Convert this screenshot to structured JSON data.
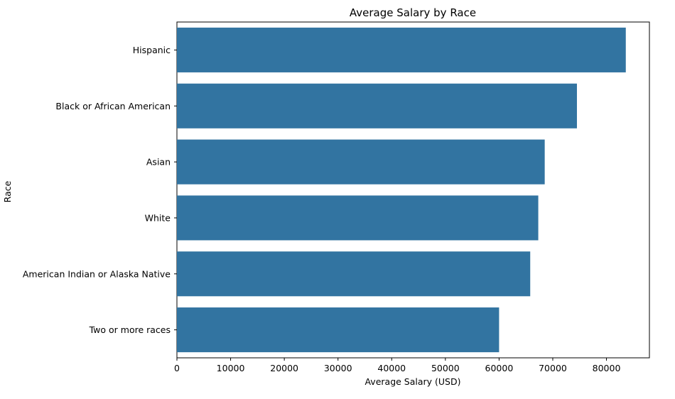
{
  "chart_data": {
    "type": "bar",
    "orientation": "horizontal",
    "title": "Average Salary by Race",
    "xlabel": "Average Salary (USD)",
    "ylabel": "Race",
    "categories": [
      "Hispanic",
      "Black or African American",
      "Asian",
      "White",
      "American Indian or Alaska Native",
      "Two or more races"
    ],
    "values": [
      83600,
      74500,
      68500,
      67300,
      65800,
      60000
    ],
    "xlim": [
      0,
      88000
    ],
    "xticks": [
      0,
      10000,
      20000,
      30000,
      40000,
      50000,
      60000,
      70000,
      80000
    ],
    "bar_color": "#3274a1",
    "grid": false,
    "legend": "none"
  }
}
